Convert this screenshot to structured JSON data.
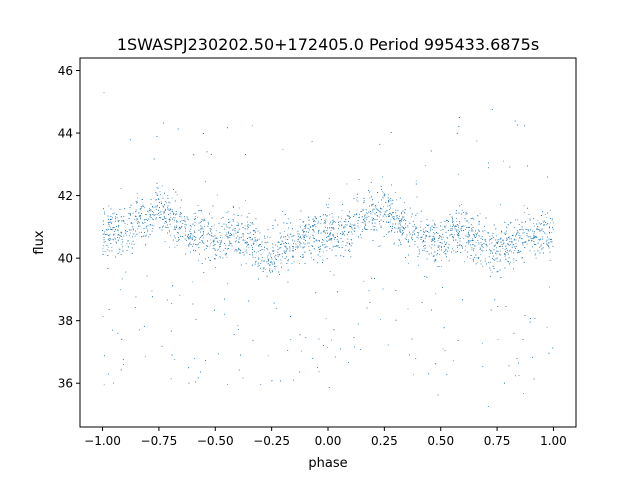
{
  "chart_data": {
    "type": "scatter",
    "title": "1SWASPJ230202.50+172405.0 Period 995433.6875s",
    "xlabel": "phase",
    "ylabel": "flux",
    "xlim": [
      -1.1,
      1.1
    ],
    "ylim": [
      34.6,
      46.4
    ],
    "xticks": [
      -1.0,
      -0.75,
      -0.5,
      -0.25,
      0.0,
      0.25,
      0.5,
      0.75,
      1.0
    ],
    "xtick_labels": [
      "−1.00",
      "−0.75",
      "−0.50",
      "−0.25",
      "0.00",
      "0.25",
      "0.50",
      "0.75",
      "1.00"
    ],
    "yticks": [
      36,
      38,
      40,
      42,
      44,
      46
    ],
    "ytick_labels": [
      "36",
      "38",
      "40",
      "42",
      "44",
      "46"
    ],
    "grid": false,
    "legend": "none",
    "marker_color": "#1f77b4",
    "series": [
      {
        "values_description_note": "",
        "x": [
          -0.97,
          -0.92,
          -0.88,
          -0.84,
          -0.8,
          -0.76,
          -0.72,
          -0.68,
          -0.64,
          -0.6,
          -0.56,
          -0.52,
          -0.48,
          -0.44,
          -0.4,
          -0.36,
          -0.32,
          -0.28,
          -0.24,
          -0.2,
          -0.16,
          -0.12,
          -0.08,
          -0.04,
          0.0,
          0.03,
          0.08,
          0.12,
          0.16,
          0.2,
          0.24,
          0.28,
          0.32,
          0.36,
          0.4,
          0.44,
          0.48,
          0.52,
          0.56,
          0.6,
          0.64,
          0.68,
          0.72,
          0.76,
          0.8,
          0.84,
          0.88,
          0.92,
          0.96,
          0.99
        ],
        "y": [
          40.9,
          40.8,
          41.0,
          41.3,
          41.2,
          41.6,
          41.4,
          41.3,
          40.9,
          40.6,
          40.8,
          40.7,
          40.5,
          40.9,
          40.8,
          40.6,
          40.4,
          40.2,
          40.1,
          40.5,
          40.4,
          40.6,
          40.8,
          40.6,
          40.9,
          40.8,
          40.9,
          41.1,
          41.3,
          41.4,
          41.6,
          41.3,
          41.2,
          41.0,
          40.7,
          40.8,
          40.6,
          40.5,
          40.9,
          40.8,
          40.6,
          40.5,
          40.2,
          40.3,
          40.4,
          40.6,
          40.8,
          40.7,
          40.8,
          40.9
        ]
      }
    ]
  }
}
